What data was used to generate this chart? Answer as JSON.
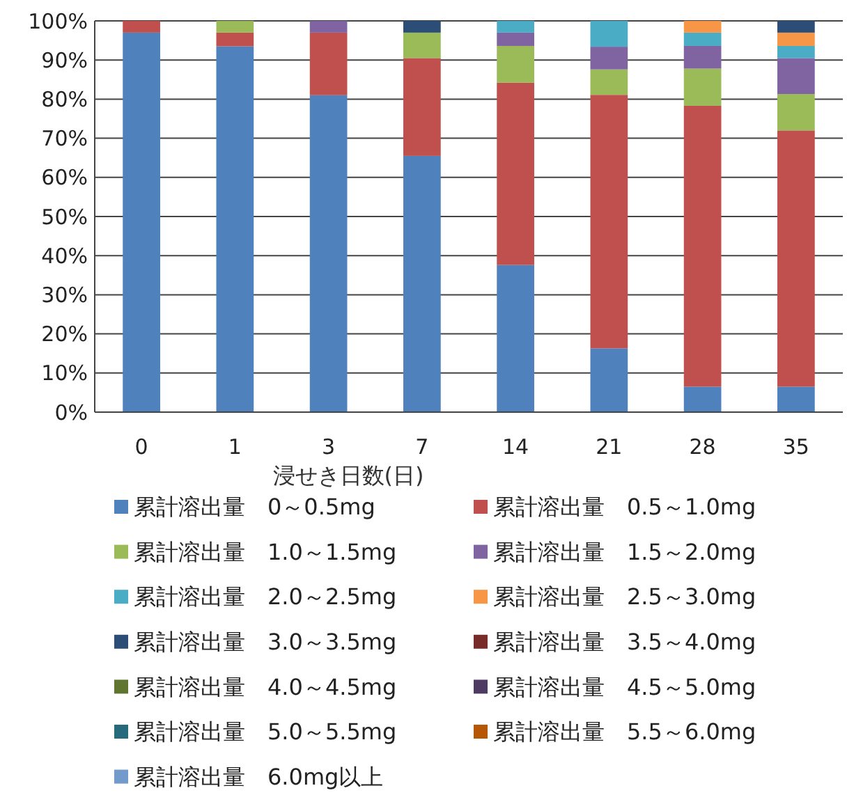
{
  "chart_data": {
    "type": "bar",
    "stacked": true,
    "xlabel": "浸せき日数(日)",
    "categories": [
      "0",
      "1",
      "3",
      "7",
      "14",
      "21",
      "28",
      "35"
    ],
    "ylim": [
      0,
      100
    ],
    "yticks": [
      {
        "value": 0,
        "label": "0%"
      },
      {
        "value": 10,
        "label": "10%"
      },
      {
        "value": 20,
        "label": "20%"
      },
      {
        "value": 30,
        "label": "30%"
      },
      {
        "value": 40,
        "label": "40%"
      },
      {
        "value": 50,
        "label": "50%"
      },
      {
        "value": 60,
        "label": "60%"
      },
      {
        "value": 70,
        "label": "70%"
      },
      {
        "value": 80,
        "label": "80%"
      },
      {
        "value": 90,
        "label": "90%"
      },
      {
        "value": 100,
        "label": "100%"
      }
    ],
    "grid": "y",
    "legend": "bottom",
    "series": [
      {
        "name": "累計溶出量　0～0.5mg",
        "color": "#4f81bd",
        "values": [
          97,
          93.5,
          81,
          65.5,
          37.6,
          16.3,
          6.5,
          6.5
        ]
      },
      {
        "name": "累計溶出量　0.5～1.0mg",
        "color": "#c0504d",
        "values": [
          3,
          3.5,
          16,
          25,
          46.6,
          64.8,
          71.8,
          65.5
        ]
      },
      {
        "name": "累計溶出量　1.0～1.5mg",
        "color": "#9bbb59",
        "values": [
          0,
          3,
          0,
          6.5,
          9.4,
          6.5,
          9.5,
          9.3
        ]
      },
      {
        "name": "累計溶出量　1.5～2.0mg",
        "color": "#8064a2",
        "values": [
          0,
          0,
          3,
          0,
          3.4,
          5.8,
          5.8,
          9.2
        ]
      },
      {
        "name": "累計溶出量　2.0～2.5mg",
        "color": "#4bacc6",
        "values": [
          0,
          0,
          0,
          0,
          3,
          6.6,
          3.4,
          3.1
        ]
      },
      {
        "name": "累計溶出量　2.5～3.0mg",
        "color": "#f79646",
        "values": [
          0,
          0,
          0,
          0,
          0,
          0,
          3,
          3.4
        ]
      },
      {
        "name": "累計溶出量　3.0～3.5mg",
        "color": "#2c4d75",
        "values": [
          0,
          0,
          0,
          3,
          0,
          0,
          0,
          3
        ]
      },
      {
        "name": "累計溶出量　3.5～4.0mg",
        "color": "#772c2a",
        "values": [
          0,
          0,
          0,
          0,
          0,
          0,
          0,
          0
        ]
      },
      {
        "name": "累計溶出量　4.0～4.5mg",
        "color": "#5f7530",
        "values": [
          0,
          0,
          0,
          0,
          0,
          0,
          0,
          0
        ]
      },
      {
        "name": "累計溶出量　4.5～5.0mg",
        "color": "#4d3b62",
        "values": [
          0,
          0,
          0,
          0,
          0,
          0,
          0,
          0
        ]
      },
      {
        "name": "累計溶出量　5.0～5.5mg",
        "color": "#276a7c",
        "values": [
          0,
          0,
          0,
          0,
          0,
          0,
          0,
          0
        ]
      },
      {
        "name": "累計溶出量　5.5～6.0mg",
        "color": "#b65708",
        "values": [
          0,
          0,
          0,
          0,
          0,
          0,
          0,
          0
        ]
      },
      {
        "name": "累計溶出量　6.0mg以上",
        "color": "#729aca",
        "values": [
          0,
          0,
          0,
          0,
          0,
          0,
          0,
          0
        ]
      }
    ]
  }
}
